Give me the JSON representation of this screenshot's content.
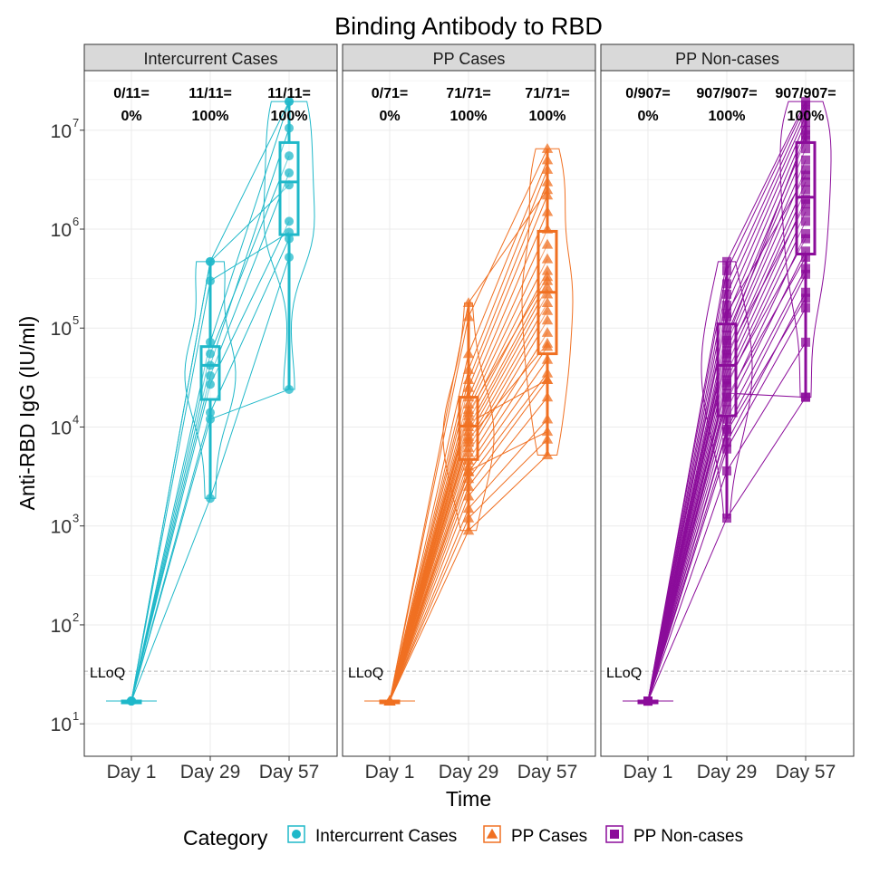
{
  "chart_data": {
    "type": "scatter",
    "title": "Binding Antibody to RBD",
    "xlabel": "Time",
    "ylabel": "Anti-RBD IgG (IU/ml)",
    "y_scale": "log10",
    "ylim": [
      4.7,
      40000000.0
    ],
    "y_ticks": [
      {
        "value": 10,
        "base": "10",
        "exp": "1"
      },
      {
        "value": 100,
        "base": "10",
        "exp": "2"
      },
      {
        "value": 1000,
        "base": "10",
        "exp": "3"
      },
      {
        "value": 10000,
        "base": "10",
        "exp": "4"
      },
      {
        "value": 100000,
        "base": "10",
        "exp": "5"
      },
      {
        "value": 1000000,
        "base": "10",
        "exp": "6"
      },
      {
        "value": 10000000,
        "base": "10",
        "exp": "7"
      }
    ],
    "categories": [
      "Day 1",
      "Day 29",
      "Day 57"
    ],
    "reference_line": {
      "label": "LLoQ",
      "value": 34,
      "style": "dashed"
    },
    "legend": {
      "title": "Category",
      "position": "bottom"
    },
    "grid": true,
    "panels": [
      {
        "name": "Intercurrent Cases",
        "color": "#1fb8c9",
        "marker": "circle",
        "response_rates": [
          {
            "ratio": "0/11=",
            "pct": "0%"
          },
          {
            "ratio": "11/11=",
            "pct": "100%"
          },
          {
            "ratio": "11/11=",
            "pct": "100%"
          }
        ],
        "boxes": [
          {
            "q1": 17,
            "median": 17,
            "q3": 17
          },
          {
            "q1": 19000,
            "median": 42000,
            "q3": 65000
          },
          {
            "q1": 880000,
            "median": 3000000,
            "q3": 7500000
          }
        ],
        "subjects": [
          [
            17,
            1900,
            520000
          ],
          [
            17,
            12000,
            24000
          ],
          [
            17,
            14000,
            800000
          ],
          [
            17,
            27000,
            1200000
          ],
          [
            17,
            33000,
            3700000
          ],
          [
            17,
            42000,
            10500000
          ],
          [
            17,
            55000,
            5500000
          ],
          [
            17,
            72000,
            19500000
          ],
          [
            17,
            300000,
            930000
          ],
          [
            17,
            470000,
            19500000
          ],
          [
            17,
            470000,
            2800000
          ]
        ]
      },
      {
        "name": "PP Cases",
        "color": "#f07022",
        "marker": "triangle",
        "response_rates": [
          {
            "ratio": "0/71=",
            "pct": "0%"
          },
          {
            "ratio": "71/71=",
            "pct": "100%"
          },
          {
            "ratio": "71/71=",
            "pct": "100%"
          }
        ],
        "boxes": [
          {
            "q1": 17,
            "median": 17,
            "q3": 17
          },
          {
            "q1": 4700,
            "median": 10200,
            "q3": 20000
          },
          {
            "q1": 55000,
            "median": 230000,
            "q3": 950000
          }
        ],
        "subjects": [
          [
            17,
            900,
            5200
          ],
          [
            17,
            1200,
            7500
          ],
          [
            17,
            1500,
            12000
          ],
          [
            17,
            2000,
            20000
          ],
          [
            17,
            2500,
            30000
          ],
          [
            17,
            3000,
            35000
          ],
          [
            17,
            3500,
            48000
          ],
          [
            17,
            4000,
            65000
          ],
          [
            17,
            4600,
            90000
          ],
          [
            17,
            5500,
            120000
          ],
          [
            17,
            6200,
            150000
          ],
          [
            17,
            7000,
            180000
          ],
          [
            17,
            8000,
            220000
          ],
          [
            17,
            9000,
            260000
          ],
          [
            17,
            10000,
            300000
          ],
          [
            17,
            11500,
            380000
          ],
          [
            17,
            13000,
            500000
          ],
          [
            17,
            15000,
            700000
          ],
          [
            17,
            17000,
            1000000
          ],
          [
            17,
            20000,
            1500000
          ],
          [
            17,
            25000,
            2200000
          ],
          [
            17,
            30000,
            3000000
          ],
          [
            17,
            38000,
            4000000
          ],
          [
            17,
            55000,
            5000000
          ],
          [
            17,
            130000,
            6500000
          ],
          [
            17,
            180000,
            2500000
          ],
          [
            17,
            11000,
            30000
          ],
          [
            17,
            3600,
            9000
          ],
          [
            17,
            7500,
            70000
          ],
          [
            17,
            14000,
            330000
          ]
        ]
      },
      {
        "name": "PP Non-cases",
        "color": "#8b0c9a",
        "marker": "square",
        "response_rates": [
          {
            "ratio": "0/907=",
            "pct": "0%"
          },
          {
            "ratio": "907/907=",
            "pct": "100%"
          },
          {
            "ratio": "907/907=",
            "pct": "100%"
          }
        ],
        "boxes": [
          {
            "q1": 17,
            "median": 17,
            "q3": 17
          },
          {
            "q1": 13000,
            "median": 42000,
            "q3": 110000
          },
          {
            "q1": 560000,
            "median": 2100000,
            "q3": 7500000
          }
        ],
        "subjects": [
          [
            17,
            1200,
            20000
          ],
          [
            17,
            3600,
            72000
          ],
          [
            17,
            6000,
            160000
          ],
          [
            17,
            7000,
            230000
          ],
          [
            17,
            9000,
            200000
          ],
          [
            17,
            12000,
            400000
          ],
          [
            17,
            15000,
            600000
          ],
          [
            17,
            18000,
            900000
          ],
          [
            17,
            22000,
            20000
          ],
          [
            17,
            26000,
            1200000
          ],
          [
            17,
            30000,
            1500000
          ],
          [
            17,
            35000,
            2000000
          ],
          [
            17,
            42000,
            2500000
          ],
          [
            17,
            50000,
            3000000
          ],
          [
            17,
            60000,
            4000000
          ],
          [
            17,
            70000,
            5000000
          ],
          [
            17,
            85000,
            6500000
          ],
          [
            17,
            100000,
            8000000
          ],
          [
            17,
            130000,
            10000000
          ],
          [
            17,
            170000,
            12000000
          ],
          [
            17,
            220000,
            14000000
          ],
          [
            17,
            280000,
            16000000
          ],
          [
            17,
            380000,
            18000000
          ],
          [
            17,
            470000,
            19500000
          ],
          [
            17,
            28000,
            800000
          ],
          [
            17,
            9500,
            350000
          ],
          [
            17,
            55000,
            1800000
          ],
          [
            17,
            140000,
            3500000
          ],
          [
            17,
            20000,
            520000
          ],
          [
            17,
            75000,
            9000000
          ]
        ]
      }
    ]
  }
}
